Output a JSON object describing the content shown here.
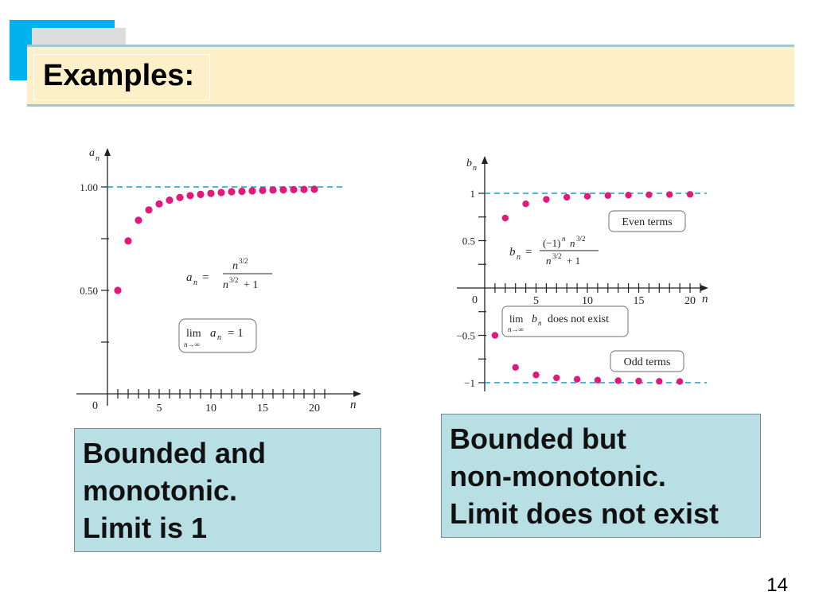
{
  "slide": {
    "title": "Examples:",
    "page_number": "14"
  },
  "notes": {
    "left": [
      "Bounded and",
      "monotonic.",
      "Limit is 1"
    ],
    "right": [
      "Bounded but",
      "non-monotonic.",
      "Limit does not exist"
    ]
  },
  "colors": {
    "accent_blue": "#00b3ee",
    "header_fill": "#fdf0c8",
    "note_fill": "#b8e0e4",
    "point_color": "#e0197a",
    "dashed_line": "#1a9ad6"
  },
  "chart_data": [
    {
      "type": "scatter",
      "ylabel": "a_n",
      "xlabel": "n",
      "xlim": [
        0,
        22
      ],
      "ylim": [
        0,
        1.1
      ],
      "xticks": [
        "5",
        "10",
        "15",
        "20"
      ],
      "yticks": [
        "0.50",
        "1.00"
      ],
      "origin_label": "0",
      "asymptote": 1.0,
      "formula": "a_n = n^{3/2} / (n^{3/2} + 1)",
      "annotation": "lim_{n→∞} a_n = 1",
      "x": [
        1,
        2,
        3,
        4,
        5,
        6,
        7,
        8,
        9,
        10,
        11,
        12,
        13,
        14,
        15,
        16,
        17,
        18,
        19,
        20
      ],
      "y": [
        0.5,
        0.739,
        0.839,
        0.889,
        0.918,
        0.936,
        0.949,
        0.958,
        0.964,
        0.969,
        0.973,
        0.977,
        0.979,
        0.981,
        0.983,
        0.985,
        0.986,
        0.987,
        0.988,
        0.989
      ]
    },
    {
      "type": "scatter",
      "ylabel": "b_n",
      "xlabel": "n",
      "xlim": [
        0,
        22
      ],
      "ylim": [
        -1.2,
        1.2
      ],
      "xticks": [
        "5",
        "10",
        "15",
        "20"
      ],
      "yticks": [
        "−1",
        "−0.5",
        "0.5",
        "1"
      ],
      "origin_label": "0",
      "asymptotes": [
        1,
        -1
      ],
      "formula": "b_n = (−1)^n n^{3/2} / (n^{3/2} + 1)",
      "annotations": [
        "Even terms",
        "Odd terms",
        "lim_{n→∞} b_n does not exist"
      ],
      "series": [
        {
          "name": "Even terms",
          "x": [
            2,
            4,
            6,
            8,
            10,
            12,
            14,
            16,
            18,
            20
          ],
          "y": [
            0.739,
            0.889,
            0.936,
            0.958,
            0.969,
            0.977,
            0.981,
            0.985,
            0.987,
            0.989
          ]
        },
        {
          "name": "Odd terms",
          "x": [
            1,
            3,
            5,
            7,
            9,
            11,
            13,
            15,
            17,
            19
          ],
          "y": [
            -0.5,
            -0.839,
            -0.918,
            -0.949,
            -0.964,
            -0.973,
            -0.979,
            -0.983,
            -0.986,
            -0.988
          ]
        }
      ]
    }
  ]
}
